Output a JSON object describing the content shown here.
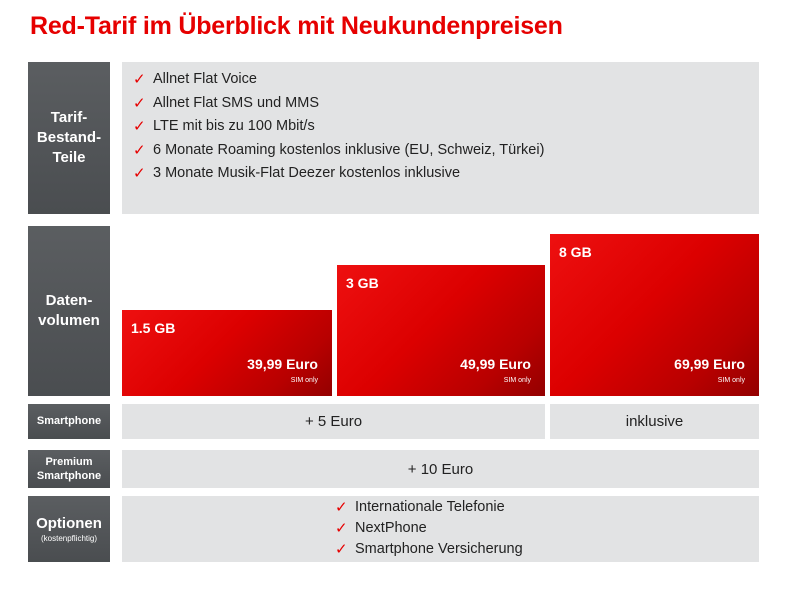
{
  "title": "Red-Tarif im Überblick mit Neukundenpreisen",
  "labels": {
    "tarif": [
      "Tarif-",
      "Bestand-",
      "Teile"
    ],
    "daten": [
      "Daten-",
      "volumen"
    ],
    "smartphone": "Smartphone",
    "premium": [
      "Premium",
      "Smartphone"
    ],
    "optionen": "Optionen",
    "optionen_sub": "(kostenpflichtig)"
  },
  "tarif_items": [
    "Allnet Flat Voice",
    "Allnet Flat SMS und MMS",
    "LTE mit bis zu 100 Mbit/s",
    "6 Monate Roaming kostenlos inklusive (EU, Schweiz, Türkei)",
    "3  Monate Musik-Flat Deezer kostenlos inklusive"
  ],
  "plans": [
    {
      "volume": "1.5 GB",
      "price": "39,99 Euro",
      "note": "SIM only"
    },
    {
      "volume": "3 GB",
      "price": "49,99 Euro",
      "note": "SIM only"
    },
    {
      "volume": "8 GB",
      "price": "69,99 Euro",
      "note": "SIM only"
    }
  ],
  "smartphone": {
    "small_plans": "+ 5 Euro",
    "large_plan": "inklusive"
  },
  "premium": {
    "all_plans": "+ 10 Euro"
  },
  "options": [
    "Internationale Telefonie",
    "NextPhone",
    "Smartphone Versicherung"
  ],
  "check_icon": "✓",
  "colors": {
    "accent": "#e60000",
    "label_bg": "#4f5255",
    "panel_bg": "#e2e3e4"
  }
}
